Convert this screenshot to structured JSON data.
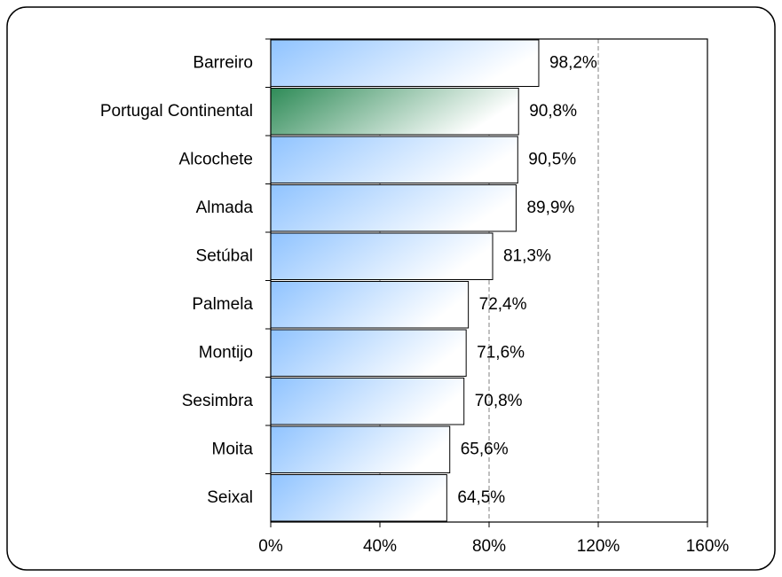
{
  "chart_data": {
    "type": "barh",
    "categories": [
      "Barreiro",
      "Portugal Continental",
      "Alcochete",
      "Almada",
      "Setúbal",
      "Palmela",
      "Montijo",
      "Sesimbra",
      "Moita",
      "Seixal"
    ],
    "values": [
      98.2,
      90.8,
      90.5,
      89.9,
      81.3,
      72.4,
      71.6,
      70.8,
      65.6,
      64.5
    ],
    "value_labels": [
      "98,2%",
      "90,8%",
      "90,5%",
      "89,9%",
      "81,3%",
      "72,4%",
      "71,6%",
      "70,8%",
      "65,6%",
      "64,5%"
    ],
    "colors": [
      "#8fc3ff",
      "#2e8b57",
      "#8fc3ff",
      "#8fc3ff",
      "#8fc3ff",
      "#8fc3ff",
      "#8fc3ff",
      "#8fc3ff",
      "#8fc3ff",
      "#8fc3ff"
    ],
    "label_colors": [
      "#333399",
      "#339966",
      "#333399",
      "#333399",
      "#333399",
      "#333399",
      "#333399",
      "#333399",
      "#333399",
      "#333399"
    ],
    "xlim": [
      0,
      160
    ],
    "xticks": [
      {
        "value": 0,
        "label": "0%"
      },
      {
        "value": 40,
        "label": "40%"
      },
      {
        "value": 80,
        "label": "80%"
      },
      {
        "value": 120,
        "label": "120%"
      },
      {
        "value": 160,
        "label": "160%"
      }
    ],
    "grid": true
  }
}
